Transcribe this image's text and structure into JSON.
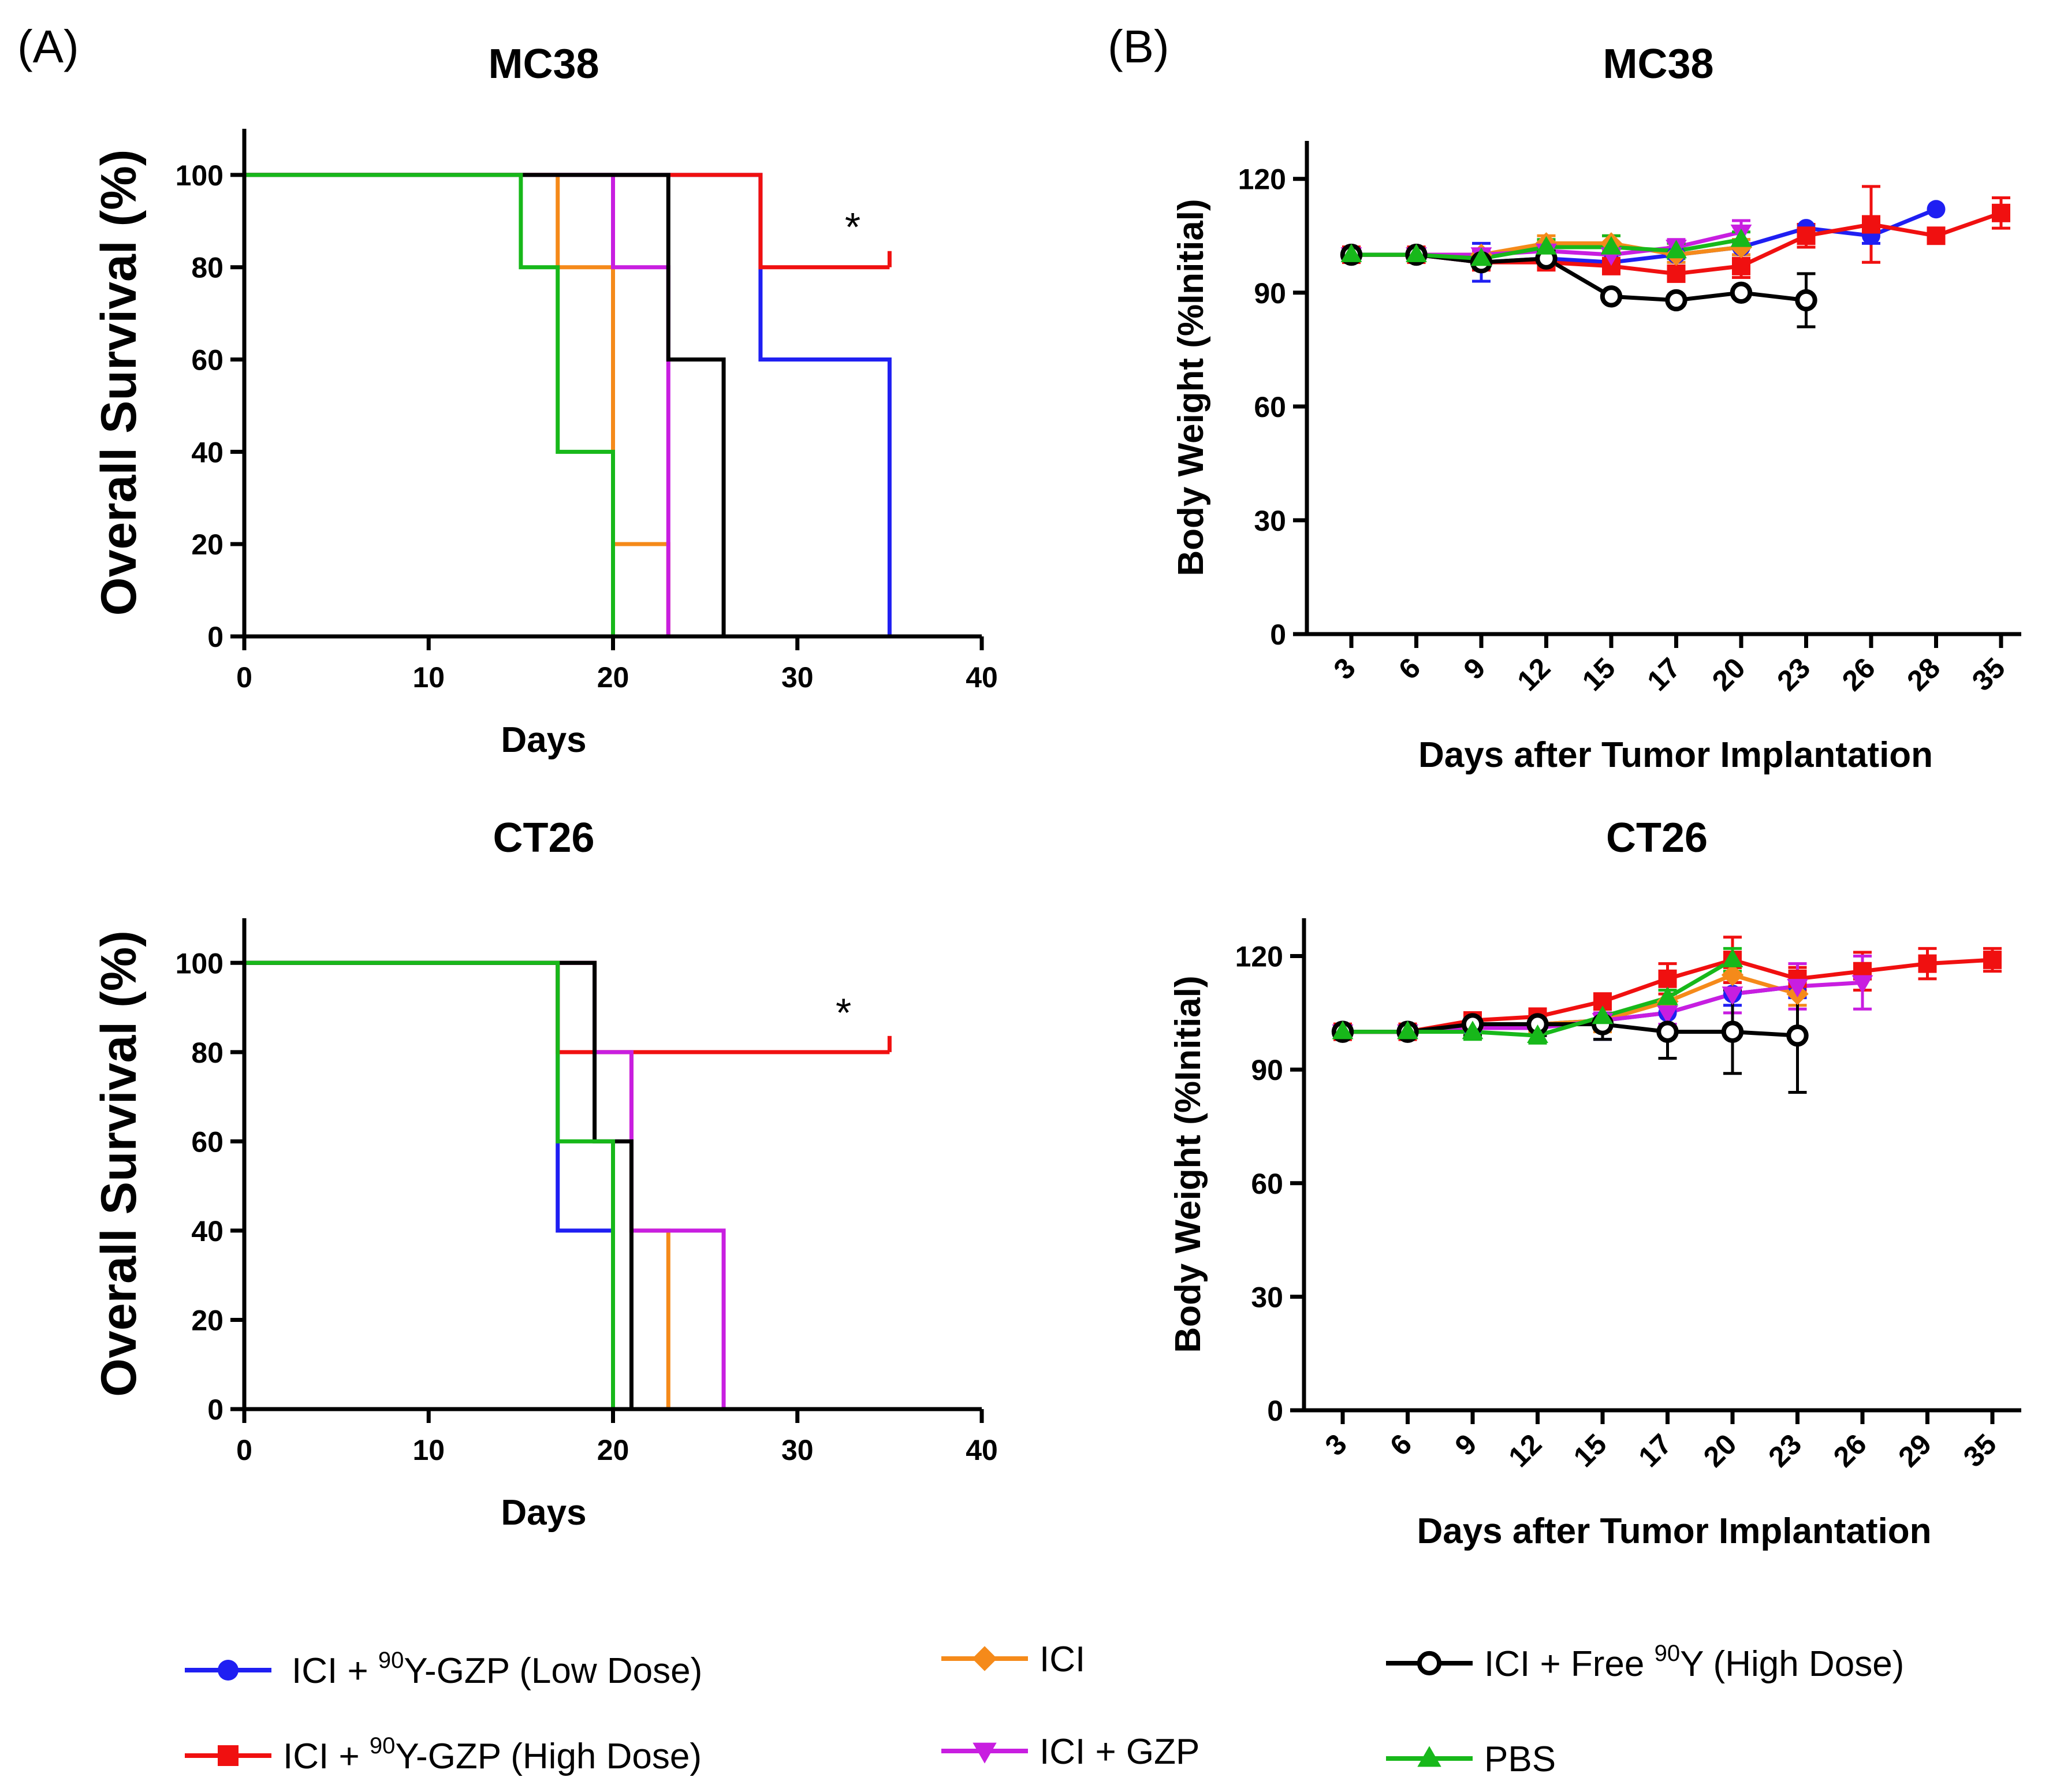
{
  "panel_labels": {
    "a": "(A)",
    "b": "(B)"
  },
  "series_styles": [
    {
      "key": "low",
      "color": "#1f1ff2",
      "marker": "circle"
    },
    {
      "key": "high",
      "color": "#f01010",
      "marker": "square"
    },
    {
      "key": "ici",
      "color": "#f58a1a",
      "marker": "diamond"
    },
    {
      "key": "gzp",
      "color": "#c81ee0",
      "marker": "triangle-down"
    },
    {
      "key": "free",
      "color": "#000000",
      "marker": "open-circle"
    },
    {
      "key": "pbs",
      "color": "#17b81a",
      "marker": "triangle-up"
    }
  ],
  "legend": {
    "low": {
      "pre": "ICI + ",
      "sup": "90",
      "post": "Y-GZP (Low Dose)"
    },
    "high": {
      "pre": "ICI + ",
      "sup": "90",
      "post": "Y-GZP (High Dose)"
    },
    "ici": {
      "pre": "ICI",
      "sup": "",
      "post": ""
    },
    "gzp": {
      "pre": "ICI + GZP",
      "sup": "",
      "post": ""
    },
    "free": {
      "pre": "ICI + Free ",
      "sup": "90",
      "post": "Y (High Dose)"
    },
    "pbs": {
      "pre": "PBS",
      "sup": "",
      "post": ""
    }
  },
  "chart_data": [
    {
      "id": "survival-mc38",
      "type": "line",
      "subtype": "kaplan-meier",
      "title": "MC38",
      "xlabel": "Days",
      "ylabel": "Overall Survival (%)",
      "xlim": [
        0,
        40
      ],
      "ylim": [
        0,
        110
      ],
      "xticks": [
        0,
        10,
        20,
        30,
        40
      ],
      "yticks": [
        0,
        20,
        40,
        60,
        80,
        100
      ],
      "annotation": {
        "text": "*",
        "x": 33,
        "y": 87
      },
      "series": [
        {
          "key": "low",
          "steps": [
            [
              0,
              100
            ],
            [
              28,
              100
            ],
            [
              28,
              60
            ],
            [
              35,
              60
            ],
            [
              35,
              0
            ]
          ]
        },
        {
          "key": "high",
          "steps": [
            [
              0,
              100
            ],
            [
              28,
              100
            ],
            [
              28,
              80
            ],
            [
              35,
              80
            ]
          ],
          "censor": [
            [
              35,
              80
            ]
          ]
        },
        {
          "key": "ici",
          "steps": [
            [
              0,
              100
            ],
            [
              17,
              100
            ],
            [
              17,
              80
            ],
            [
              20,
              80
            ],
            [
              20,
              20
            ],
            [
              23,
              20
            ],
            [
              23,
              0
            ]
          ]
        },
        {
          "key": "gzp",
          "steps": [
            [
              0,
              100
            ],
            [
              20,
              100
            ],
            [
              20,
              80
            ],
            [
              23,
              80
            ],
            [
              23,
              0
            ]
          ]
        },
        {
          "key": "free",
          "steps": [
            [
              0,
              100
            ],
            [
              23,
              100
            ],
            [
              23,
              60
            ],
            [
              26,
              60
            ],
            [
              26,
              0
            ]
          ]
        },
        {
          "key": "pbs",
          "steps": [
            [
              0,
              100
            ],
            [
              15,
              100
            ],
            [
              15,
              80
            ],
            [
              17,
              80
            ],
            [
              17,
              40
            ],
            [
              20,
              40
            ],
            [
              20,
              0
            ]
          ]
        }
      ]
    },
    {
      "id": "survival-ct26",
      "type": "line",
      "subtype": "kaplan-meier",
      "title": "CT26",
      "xlabel": "Days",
      "ylabel": "Overall Survival (%)",
      "xlim": [
        0,
        40
      ],
      "ylim": [
        0,
        110
      ],
      "xticks": [
        0,
        10,
        20,
        30,
        40
      ],
      "yticks": [
        0,
        20,
        40,
        60,
        80,
        100
      ],
      "annotation": {
        "text": "*",
        "x": 32.5,
        "y": 87
      },
      "series": [
        {
          "key": "low",
          "steps": [
            [
              0,
              100
            ],
            [
              17,
              100
            ],
            [
              17,
              40
            ],
            [
              20,
              40
            ],
            [
              20,
              0
            ]
          ]
        },
        {
          "key": "high",
          "steps": [
            [
              0,
              100
            ],
            [
              17,
              100
            ],
            [
              17,
              80
            ],
            [
              35,
              80
            ]
          ],
          "censor": [
            [
              35,
              80
            ]
          ]
        },
        {
          "key": "ici",
          "steps": [
            [
              0,
              100
            ],
            [
              19,
              100
            ],
            [
              19,
              80
            ],
            [
              21,
              80
            ],
            [
              21,
              40
            ],
            [
              23,
              40
            ],
            [
              23,
              0
            ]
          ]
        },
        {
          "key": "gzp",
          "steps": [
            [
              0,
              100
            ],
            [
              19,
              100
            ],
            [
              19,
              80
            ],
            [
              21,
              80
            ],
            [
              21,
              40
            ],
            [
              26,
              40
            ],
            [
              26,
              0
            ]
          ]
        },
        {
          "key": "free",
          "steps": [
            [
              0,
              100
            ],
            [
              19,
              100
            ],
            [
              19,
              60
            ],
            [
              21,
              60
            ],
            [
              21,
              0
            ]
          ]
        },
        {
          "key": "pbs",
          "steps": [
            [
              0,
              100
            ],
            [
              17,
              100
            ],
            [
              17,
              60
            ],
            [
              20,
              60
            ],
            [
              20,
              0
            ]
          ]
        }
      ]
    },
    {
      "id": "weight-mc38",
      "type": "line",
      "title": "MC38",
      "xlabel": "Days after Tumor Implantation",
      "ylabel": "Body Weight (%Initial)",
      "categories": [
        "3",
        "6",
        "9",
        "12",
        "15",
        "17",
        "20",
        "23",
        "26",
        "28",
        "35"
      ],
      "ylim": [
        0,
        130
      ],
      "yticks": [
        0,
        30,
        60,
        90,
        120
      ],
      "series": [
        {
          "key": "low",
          "values": [
            100,
            100,
            98,
            99,
            98,
            100,
            102,
            107,
            105,
            112,
            null
          ],
          "errors": [
            0,
            0,
            5,
            2,
            2,
            2,
            2,
            1,
            2,
            0,
            0
          ]
        },
        {
          "key": "high",
          "values": [
            100,
            100,
            98,
            98,
            97,
            95,
            97,
            105,
            108,
            105,
            111
          ],
          "errors": [
            0,
            0,
            2,
            2,
            2,
            2,
            3,
            3,
            10,
            2,
            4
          ]
        },
        {
          "key": "ici",
          "values": [
            100,
            100,
            100,
            103,
            103,
            100,
            102,
            null,
            null,
            null,
            null
          ],
          "errors": [
            0,
            0,
            1,
            2,
            2,
            2,
            2,
            0,
            0,
            0,
            0
          ]
        },
        {
          "key": "gzp",
          "values": [
            100,
            100,
            100,
            101,
            100,
            102,
            106,
            null,
            null,
            null,
            null
          ],
          "errors": [
            0,
            0,
            1,
            2,
            2,
            2,
            3,
            0,
            0,
            0,
            0
          ]
        },
        {
          "key": "free",
          "values": [
            100,
            100,
            98,
            99,
            89,
            88,
            90,
            88,
            null,
            null,
            null
          ],
          "errors": [
            0,
            0,
            2,
            2,
            1,
            1,
            1,
            7,
            0,
            0,
            0
          ]
        },
        {
          "key": "pbs",
          "values": [
            100,
            100,
            99,
            102,
            102,
            101,
            104,
            null,
            null,
            null,
            null
          ],
          "errors": [
            0,
            0,
            1,
            2,
            3,
            2,
            2,
            0,
            0,
            0,
            0
          ]
        }
      ]
    },
    {
      "id": "weight-ct26",
      "type": "line",
      "title": "CT26",
      "xlabel": "Days after Tumor Implantation",
      "ylabel": "Body Weight (%Initial)",
      "categories": [
        "3",
        "6",
        "9",
        "12",
        "15",
        "17",
        "20",
        "23",
        "26",
        "29",
        "35"
      ],
      "ylim": [
        0,
        130
      ],
      "yticks": [
        0,
        30,
        60,
        90,
        120
      ],
      "series": [
        {
          "key": "low",
          "values": [
            100,
            100,
            101,
            102,
            103,
            105,
            110,
            112,
            null,
            null,
            null
          ],
          "errors": [
            0,
            0,
            2,
            2,
            5,
            3,
            3,
            3,
            0,
            0,
            0
          ]
        },
        {
          "key": "high",
          "values": [
            100,
            100,
            103,
            104,
            108,
            114,
            119,
            114,
            116,
            118,
            119
          ],
          "errors": [
            0,
            0,
            2,
            2,
            2,
            4,
            6,
            3,
            5,
            4,
            3
          ]
        },
        {
          "key": "ici",
          "values": [
            100,
            100,
            101,
            102,
            103,
            108,
            115,
            110,
            null,
            null,
            null
          ],
          "errors": [
            0,
            0,
            2,
            2,
            3,
            3,
            5,
            3,
            0,
            0,
            0
          ]
        },
        {
          "key": "gzp",
          "values": [
            100,
            100,
            101,
            101,
            103,
            105,
            110,
            112,
            113,
            null,
            null
          ],
          "errors": [
            0,
            0,
            1,
            2,
            2,
            3,
            5,
            6,
            7,
            0,
            0
          ]
        },
        {
          "key": "free",
          "values": [
            100,
            100,
            102,
            102,
            102,
            100,
            100,
            99,
            null,
            null,
            null
          ],
          "errors": [
            0,
            0,
            3,
            3,
            4,
            7,
            11,
            15,
            0,
            0,
            0
          ]
        },
        {
          "key": "pbs",
          "values": [
            100,
            100,
            100,
            99,
            104,
            109,
            119,
            null,
            null,
            null,
            null
          ],
          "errors": [
            0,
            0,
            2,
            2,
            2,
            2,
            3,
            0,
            0,
            0,
            0
          ]
        }
      ]
    }
  ]
}
